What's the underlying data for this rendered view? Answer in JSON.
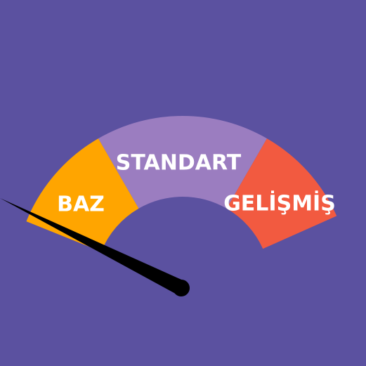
{
  "gauge": {
    "background_color": "#5B51A0",
    "hub_color": "#5B51A0",
    "needle_color": "#000000",
    "needle_level": 0.0,
    "segments": [
      {
        "label": "BAZ",
        "color": "#FFA500"
      },
      {
        "label": "STANDART",
        "color": "#9B7DC0"
      },
      {
        "label": "GELİŞMİŞ",
        "color": "#F25A40"
      }
    ]
  }
}
